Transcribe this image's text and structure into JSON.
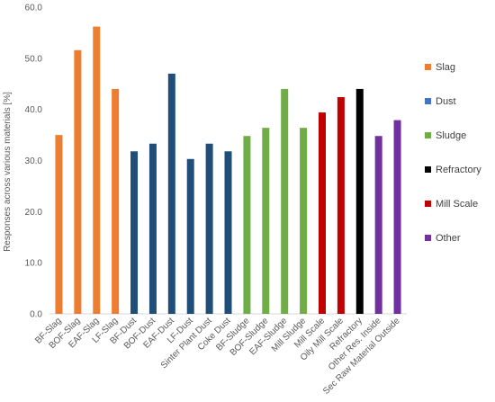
{
  "chart_data": {
    "type": "bar",
    "ylabel": "Responses across various materials [%]",
    "xlabel": "",
    "ylim": [
      0,
      60
    ],
    "yticks": [
      "0.0",
      "10.0",
      "20.0",
      "30.0",
      "40.0",
      "50.0",
      "60.0"
    ],
    "grid": false,
    "legend_position": "right",
    "categories": [
      "BF-Slag",
      "BOF-Slag",
      "EAF-Slag",
      "LF-Slag",
      "BF-Dust",
      "BOF-Dust",
      "EAF-Dust",
      "LF-Dust",
      "Sinter Plant Dust",
      "Coke Dust",
      "BF-Sludge",
      "BOF-Sludge",
      "EAF-Sludge",
      "Mill Sludge",
      "Mill Scale",
      "Oily Mill Scale",
      "Refractory",
      "Other Res. Inside",
      "Sec Raw Material Outside"
    ],
    "values": [
      35.0,
      51.6,
      56.2,
      44.0,
      31.8,
      33.3,
      47.0,
      30.3,
      33.3,
      31.8,
      34.8,
      36.4,
      44.0,
      36.4,
      39.4,
      42.4,
      44.0,
      34.8,
      37.9
    ],
    "groups": [
      "Slag",
      "Slag",
      "Slag",
      "Slag",
      "Dust",
      "Dust",
      "Dust",
      "Dust",
      "Dust",
      "Dust",
      "Sludge",
      "Sludge",
      "Sludge",
      "Sludge",
      "Mill Scale",
      "Mill Scale",
      "Refractory",
      "Other",
      "Other"
    ],
    "legend": [
      {
        "name": "Slag",
        "color": "#ED7D31"
      },
      {
        "name": "Dust",
        "color": "#4472C4"
      },
      {
        "name": "Sludge",
        "color": "#70AD47"
      },
      {
        "name": "Refractory",
        "color": "#000000"
      },
      {
        "name": "Mill Scale",
        "color": "#C00000"
      },
      {
        "name": "Other",
        "color": "#7030A0"
      }
    ],
    "bar_colors": {
      "Slag": "#ED7D31",
      "Dust": "#1F4E79",
      "Sludge": "#70AD47",
      "Refractory": "#000000",
      "Mill Scale": "#C00000",
      "Other": "#7030A0"
    }
  }
}
